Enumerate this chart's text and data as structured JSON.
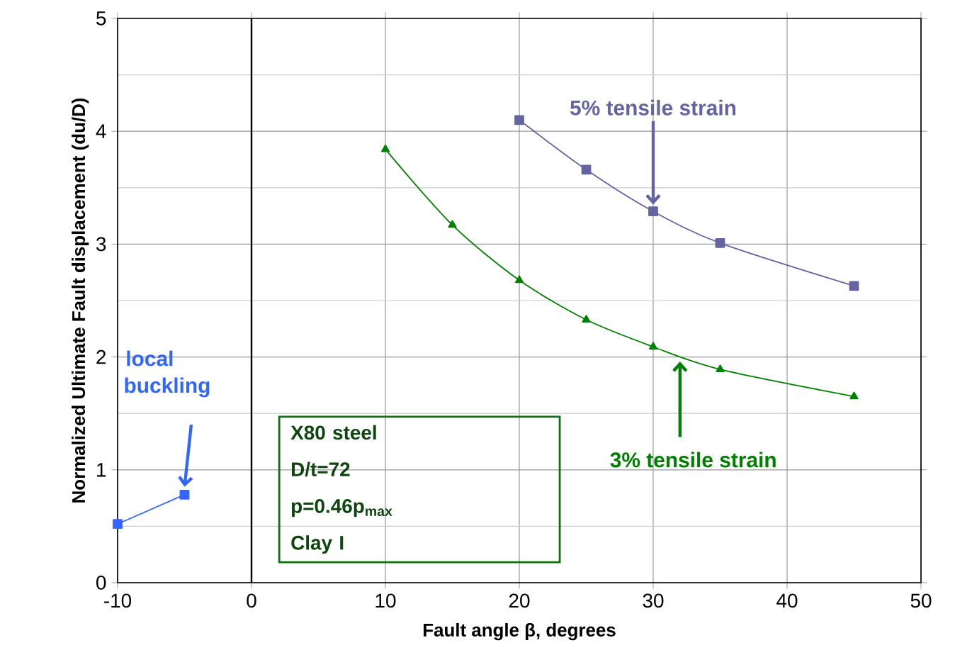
{
  "chart_data": {
    "type": "line",
    "xlabel": "Fault angle β, degrees",
    "ylabel": "Normalized Ultimate Fault displacement (du/D)",
    "xlim": [
      -10,
      50
    ],
    "ylim": [
      0,
      5
    ],
    "xticks": [
      -10,
      0,
      10,
      20,
      30,
      40,
      50
    ],
    "yticks": [
      0,
      1,
      2,
      3,
      4,
      5
    ],
    "grid": true,
    "legend": false,
    "series": [
      {
        "color": "#6464a0",
        "marker": "square",
        "x": [
          20,
          25,
          30,
          35,
          45
        ],
        "values": [
          4.1,
          3.66,
          3.29,
          3.01,
          2.63
        ]
      },
      {
        "color": "#008000",
        "marker": "triangle",
        "x": [
          10,
          15,
          20,
          25,
          30,
          35,
          45
        ],
        "values": [
          3.84,
          3.17,
          2.68,
          2.33,
          2.09,
          1.89,
          1.65
        ]
      },
      {
        "color": "#3366ff",
        "marker": "square",
        "x": [
          -10,
          -5
        ],
        "values": [
          0.52,
          0.78
        ]
      }
    ],
    "ref_lines": [
      {
        "axis": "x",
        "value": 0,
        "color": "#000000"
      }
    ],
    "annotations": [
      {
        "text": "5% tensile strain",
        "x": 30,
        "y": 3.29
      },
      {
        "text": "3% tensile strain",
        "x": 32,
        "y": 1.99
      },
      {
        "text": "local buckling",
        "x": -5,
        "y": 0.78
      },
      "X80 steel",
      "D/t=72",
      "p=0.46p$_{max}$",
      "Clay I"
    ]
  }
}
